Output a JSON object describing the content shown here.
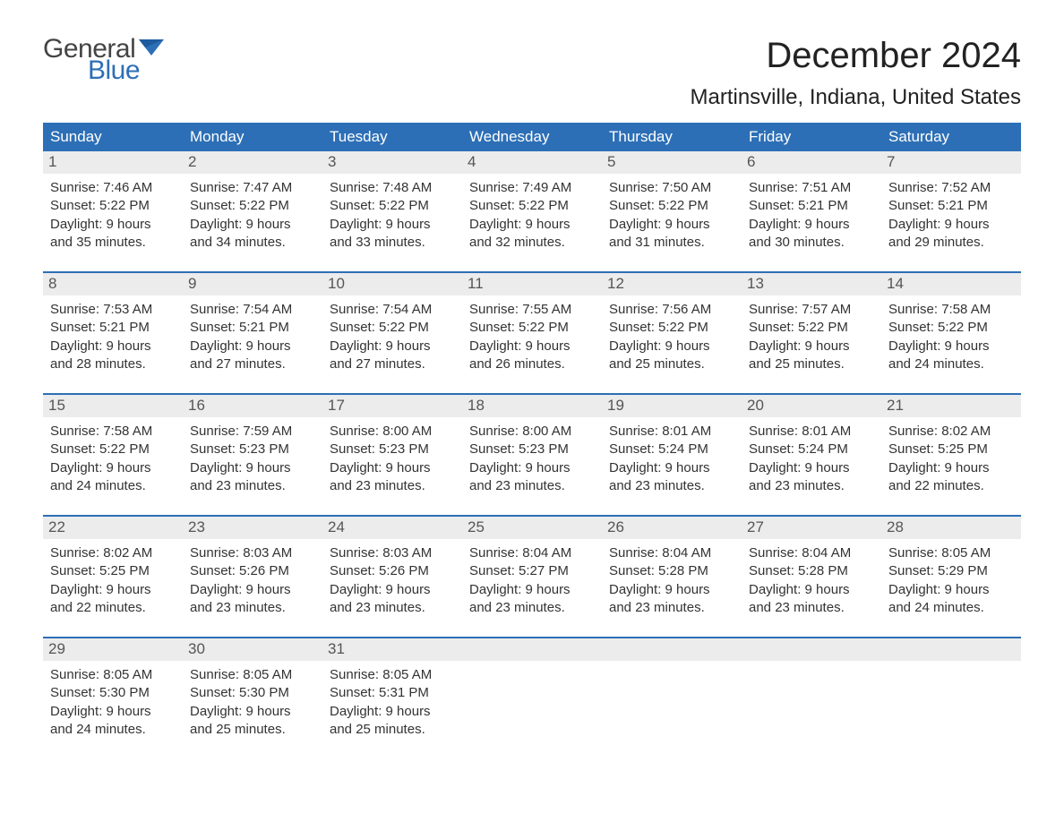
{
  "brand": {
    "part1": "General",
    "part2": "Blue",
    "flag_color": "#2d6fb6"
  },
  "title": "December 2024",
  "location": "Martinsville, Indiana, United States",
  "colors": {
    "header_bg": "#2d6fb6",
    "header_text": "#ffffff",
    "daynum_bg": "#ececec",
    "daynum_text": "#555555",
    "body_text": "#333333",
    "week_border": "#2d6fb6",
    "background": "#ffffff"
  },
  "day_headers": [
    "Sunday",
    "Monday",
    "Tuesday",
    "Wednesday",
    "Thursday",
    "Friday",
    "Saturday"
  ],
  "weeks": [
    [
      {
        "n": "1",
        "sunrise": "Sunrise: 7:46 AM",
        "sunset": "Sunset: 5:22 PM",
        "d1": "Daylight: 9 hours",
        "d2": "and 35 minutes."
      },
      {
        "n": "2",
        "sunrise": "Sunrise: 7:47 AM",
        "sunset": "Sunset: 5:22 PM",
        "d1": "Daylight: 9 hours",
        "d2": "and 34 minutes."
      },
      {
        "n": "3",
        "sunrise": "Sunrise: 7:48 AM",
        "sunset": "Sunset: 5:22 PM",
        "d1": "Daylight: 9 hours",
        "d2": "and 33 minutes."
      },
      {
        "n": "4",
        "sunrise": "Sunrise: 7:49 AM",
        "sunset": "Sunset: 5:22 PM",
        "d1": "Daylight: 9 hours",
        "d2": "and 32 minutes."
      },
      {
        "n": "5",
        "sunrise": "Sunrise: 7:50 AM",
        "sunset": "Sunset: 5:22 PM",
        "d1": "Daylight: 9 hours",
        "d2": "and 31 minutes."
      },
      {
        "n": "6",
        "sunrise": "Sunrise: 7:51 AM",
        "sunset": "Sunset: 5:21 PM",
        "d1": "Daylight: 9 hours",
        "d2": "and 30 minutes."
      },
      {
        "n": "7",
        "sunrise": "Sunrise: 7:52 AM",
        "sunset": "Sunset: 5:21 PM",
        "d1": "Daylight: 9 hours",
        "d2": "and 29 minutes."
      }
    ],
    [
      {
        "n": "8",
        "sunrise": "Sunrise: 7:53 AM",
        "sunset": "Sunset: 5:21 PM",
        "d1": "Daylight: 9 hours",
        "d2": "and 28 minutes."
      },
      {
        "n": "9",
        "sunrise": "Sunrise: 7:54 AM",
        "sunset": "Sunset: 5:21 PM",
        "d1": "Daylight: 9 hours",
        "d2": "and 27 minutes."
      },
      {
        "n": "10",
        "sunrise": "Sunrise: 7:54 AM",
        "sunset": "Sunset: 5:22 PM",
        "d1": "Daylight: 9 hours",
        "d2": "and 27 minutes."
      },
      {
        "n": "11",
        "sunrise": "Sunrise: 7:55 AM",
        "sunset": "Sunset: 5:22 PM",
        "d1": "Daylight: 9 hours",
        "d2": "and 26 minutes."
      },
      {
        "n": "12",
        "sunrise": "Sunrise: 7:56 AM",
        "sunset": "Sunset: 5:22 PM",
        "d1": "Daylight: 9 hours",
        "d2": "and 25 minutes."
      },
      {
        "n": "13",
        "sunrise": "Sunrise: 7:57 AM",
        "sunset": "Sunset: 5:22 PM",
        "d1": "Daylight: 9 hours",
        "d2": "and 25 minutes."
      },
      {
        "n": "14",
        "sunrise": "Sunrise: 7:58 AM",
        "sunset": "Sunset: 5:22 PM",
        "d1": "Daylight: 9 hours",
        "d2": "and 24 minutes."
      }
    ],
    [
      {
        "n": "15",
        "sunrise": "Sunrise: 7:58 AM",
        "sunset": "Sunset: 5:22 PM",
        "d1": "Daylight: 9 hours",
        "d2": "and 24 minutes."
      },
      {
        "n": "16",
        "sunrise": "Sunrise: 7:59 AM",
        "sunset": "Sunset: 5:23 PM",
        "d1": "Daylight: 9 hours",
        "d2": "and 23 minutes."
      },
      {
        "n": "17",
        "sunrise": "Sunrise: 8:00 AM",
        "sunset": "Sunset: 5:23 PM",
        "d1": "Daylight: 9 hours",
        "d2": "and 23 minutes."
      },
      {
        "n": "18",
        "sunrise": "Sunrise: 8:00 AM",
        "sunset": "Sunset: 5:23 PM",
        "d1": "Daylight: 9 hours",
        "d2": "and 23 minutes."
      },
      {
        "n": "19",
        "sunrise": "Sunrise: 8:01 AM",
        "sunset": "Sunset: 5:24 PM",
        "d1": "Daylight: 9 hours",
        "d2": "and 23 minutes."
      },
      {
        "n": "20",
        "sunrise": "Sunrise: 8:01 AM",
        "sunset": "Sunset: 5:24 PM",
        "d1": "Daylight: 9 hours",
        "d2": "and 23 minutes."
      },
      {
        "n": "21",
        "sunrise": "Sunrise: 8:02 AM",
        "sunset": "Sunset: 5:25 PM",
        "d1": "Daylight: 9 hours",
        "d2": "and 22 minutes."
      }
    ],
    [
      {
        "n": "22",
        "sunrise": "Sunrise: 8:02 AM",
        "sunset": "Sunset: 5:25 PM",
        "d1": "Daylight: 9 hours",
        "d2": "and 22 minutes."
      },
      {
        "n": "23",
        "sunrise": "Sunrise: 8:03 AM",
        "sunset": "Sunset: 5:26 PM",
        "d1": "Daylight: 9 hours",
        "d2": "and 23 minutes."
      },
      {
        "n": "24",
        "sunrise": "Sunrise: 8:03 AM",
        "sunset": "Sunset: 5:26 PM",
        "d1": "Daylight: 9 hours",
        "d2": "and 23 minutes."
      },
      {
        "n": "25",
        "sunrise": "Sunrise: 8:04 AM",
        "sunset": "Sunset: 5:27 PM",
        "d1": "Daylight: 9 hours",
        "d2": "and 23 minutes."
      },
      {
        "n": "26",
        "sunrise": "Sunrise: 8:04 AM",
        "sunset": "Sunset: 5:28 PM",
        "d1": "Daylight: 9 hours",
        "d2": "and 23 minutes."
      },
      {
        "n": "27",
        "sunrise": "Sunrise: 8:04 AM",
        "sunset": "Sunset: 5:28 PM",
        "d1": "Daylight: 9 hours",
        "d2": "and 23 minutes."
      },
      {
        "n": "28",
        "sunrise": "Sunrise: 8:05 AM",
        "sunset": "Sunset: 5:29 PM",
        "d1": "Daylight: 9 hours",
        "d2": "and 24 minutes."
      }
    ],
    [
      {
        "n": "29",
        "sunrise": "Sunrise: 8:05 AM",
        "sunset": "Sunset: 5:30 PM",
        "d1": "Daylight: 9 hours",
        "d2": "and 24 minutes."
      },
      {
        "n": "30",
        "sunrise": "Sunrise: 8:05 AM",
        "sunset": "Sunset: 5:30 PM",
        "d1": "Daylight: 9 hours",
        "d2": "and 25 minutes."
      },
      {
        "n": "31",
        "sunrise": "Sunrise: 8:05 AM",
        "sunset": "Sunset: 5:31 PM",
        "d1": "Daylight: 9 hours",
        "d2": "and 25 minutes."
      },
      null,
      null,
      null,
      null
    ]
  ]
}
